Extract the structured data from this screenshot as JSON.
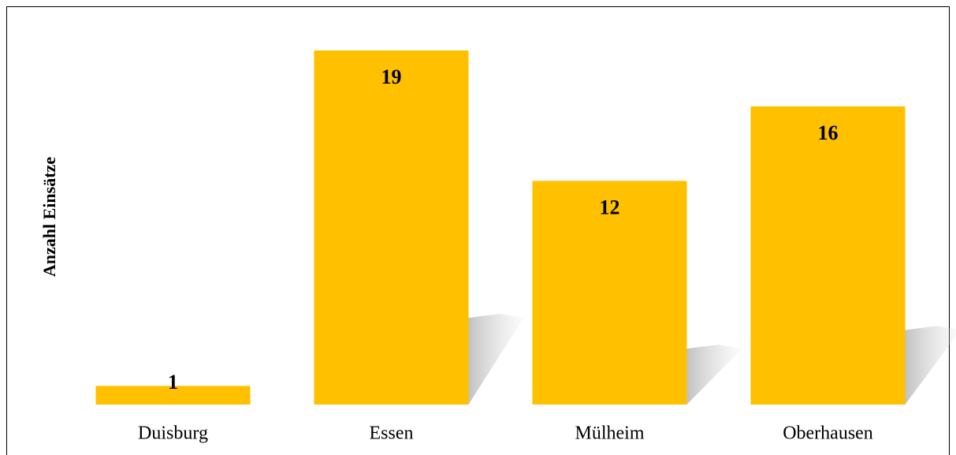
{
  "chart_data": {
    "type": "bar",
    "y_label": "Anzahl Einsätze",
    "categories": [
      "Duisburg",
      "Essen",
      "Mülheim",
      "Oberhausen"
    ],
    "values": [
      1,
      19,
      12,
      16
    ],
    "color": "#ffc000"
  }
}
